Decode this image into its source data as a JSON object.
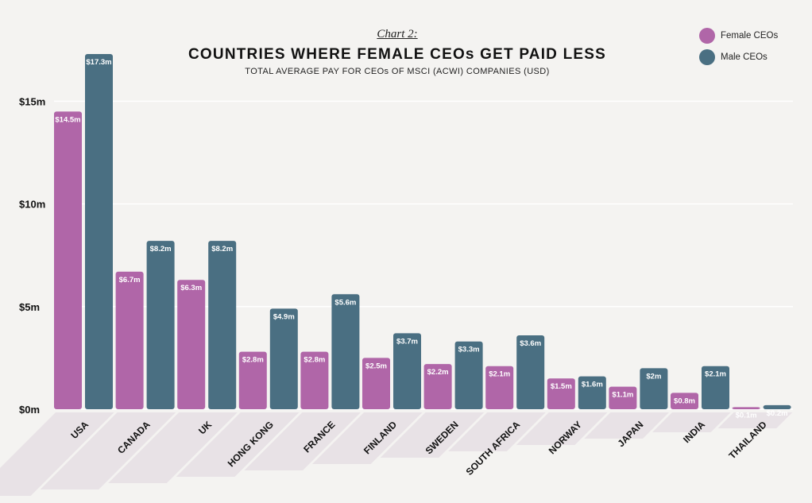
{
  "chart_label": "Chart 2:",
  "legend": [
    {
      "label": "Female CEOs",
      "color": "#b066a8"
    },
    {
      "label": "Male CEOs",
      "color": "#4a6f82"
    }
  ],
  "chart_data": {
    "type": "bar",
    "title": "COUNTRIES WHERE FEMALE CEOs GET PAID LESS",
    "subtitle": "TOTAL AVERAGE PAY FOR CEOs OF MSCI (ACWI) COMPANIES (USD)",
    "xlabel": "",
    "ylabel": "",
    "ylim": [
      0,
      17.3
    ],
    "yticks": [
      0,
      5,
      10,
      15
    ],
    "ytick_labels": [
      "$0m",
      "$5m",
      "$10m",
      "$15m"
    ],
    "grid": true,
    "legend_position": "top-right",
    "categories": [
      "USA",
      "CANADA",
      "UK",
      "HONG KONG",
      "FRANCE",
      "FINLAND",
      "SWEDEN",
      "SOUTH AFRICA",
      "NORWAY",
      "JAPAN",
      "INDIA",
      "THAILAND"
    ],
    "series": [
      {
        "name": "Female CEOs",
        "color": "#b066a8",
        "values": [
          14.5,
          6.7,
          6.3,
          2.8,
          2.8,
          2.5,
          2.2,
          2.1,
          1.5,
          1.1,
          0.8,
          0.1
        ],
        "labels": [
          "$14.5m",
          "$6.7m",
          "$6.3m",
          "$2.8m",
          "$2.8m",
          "$2.5m",
          "$2.2m",
          "$2.1m",
          "$1.5m",
          "$1.1m",
          "$0.8m",
          "$0.1m"
        ]
      },
      {
        "name": "Male CEOs",
        "color": "#4a6f82",
        "values": [
          17.3,
          8.2,
          8.2,
          4.9,
          5.6,
          3.7,
          3.3,
          3.6,
          1.6,
          2.0,
          2.1,
          0.2
        ],
        "labels": [
          "$17.3m",
          "$8.2m",
          "$8.2m",
          "$4.9m",
          "$5.6m",
          "$3.7m",
          "$3.3m",
          "$3.6m",
          "$1.6m",
          "$2m",
          "$2.1m",
          "$0.2m"
        ]
      }
    ]
  }
}
